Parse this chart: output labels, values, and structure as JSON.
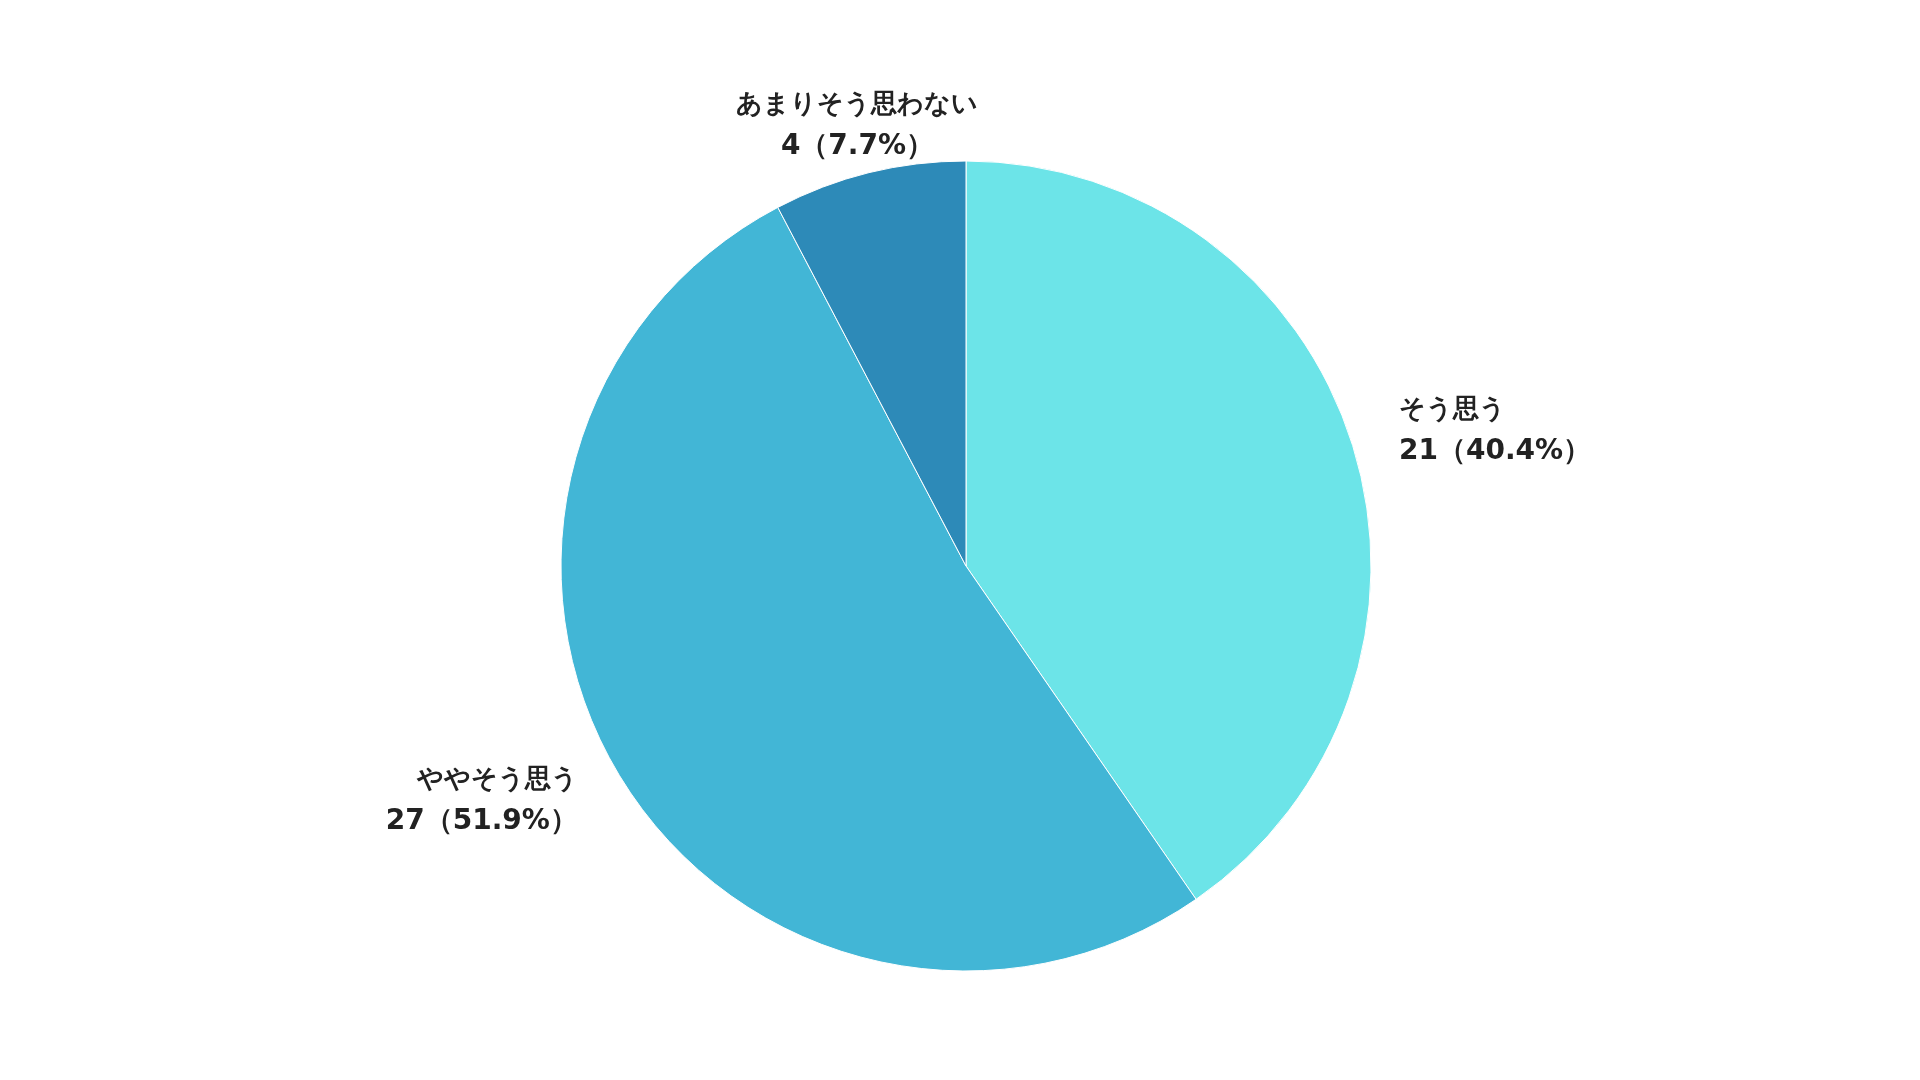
{
  "chart_data": {
    "type": "pie",
    "categories": [
      "そう思う",
      "ややそう思う",
      "あまりそう思わない"
    ],
    "values": [
      21,
      27,
      4
    ],
    "colors": [
      "#6ce4e8",
      "#42b6d6",
      "#2d8ab8"
    ],
    "value_labels": [
      "21（40.4%）",
      "27（51.9%）",
      "4（7.7%）"
    ],
    "legend": false
  }
}
